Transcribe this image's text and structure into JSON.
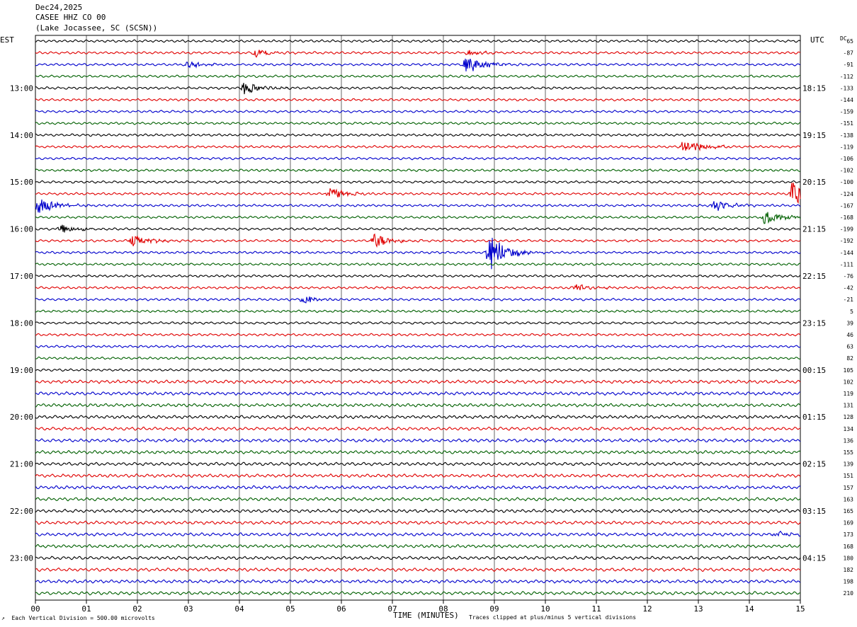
{
  "header": {
    "date": "Dec24,2025",
    "station": "CASEE HHZ CO 00",
    "location": "(Lake Jocassee, SC (SCSN))"
  },
  "axis": {
    "left_zone": "EST",
    "right_zone": "UTC",
    "dc_label": "DC",
    "xlabel": "TIME (MINUTES)"
  },
  "footer": {
    "scale_note": "Each Vertical Division =  500.00 microvolts",
    "clip_note": "Traces clipped at plus/minus 5 vertical divisions"
  },
  "chart_data": {
    "type": "line",
    "title": "Dec24,2025",
    "xlabel": "TIME (MINUTES)",
    "xlim": [
      0,
      15
    ],
    "x_ticks": [
      "00",
      "01",
      "02",
      "03",
      "04",
      "05",
      "06",
      "07",
      "08",
      "09",
      "10",
      "11",
      "12",
      "13",
      "14",
      "15"
    ],
    "trace_count": 48,
    "traces_per_hour": 4,
    "trace_colors": [
      "#000000",
      "#e00000",
      "#0000cc",
      "#006000"
    ],
    "left_hour_labels": [
      "13:00",
      "14:00",
      "15:00",
      "16:00",
      "17:00",
      "18:00",
      "19:00",
      "20:00",
      "21:00",
      "22:00",
      "23:00"
    ],
    "right_hour_labels": [
      "18:15",
      "19:15",
      "20:15",
      "21:15",
      "22:15",
      "23:15",
      "00:15",
      "01:15",
      "02:15",
      "03:15",
      "04:15"
    ],
    "dc_offsets": [
      "65",
      "-87",
      "-91",
      "-112",
      "-133",
      "-144",
      "-159",
      "-151",
      "-138",
      "-119",
      "-106",
      "-102",
      "-100",
      "-124",
      "-167",
      "-168",
      "-199",
      "-192",
      "-144",
      "-111",
      "-76",
      "-42",
      "-21",
      "5",
      "39",
      "46",
      "63",
      "82",
      "105",
      "102",
      "119",
      "131",
      "128",
      "134",
      "136",
      "155",
      "139",
      "151",
      "157",
      "163",
      "165",
      "169",
      "173",
      "168",
      "180",
      "182",
      "198",
      "210"
    ],
    "events": [
      {
        "trace": 1,
        "minute": 4.3,
        "amplitude": 0.6
      },
      {
        "trace": 2,
        "minute": 3.0,
        "amplitude": 0.5
      },
      {
        "trace": 2,
        "minute": 8.45,
        "amplitude": 1.5
      },
      {
        "trace": 1,
        "minute": 8.5,
        "amplitude": 0.4
      },
      {
        "trace": 4,
        "minute": 4.1,
        "amplitude": 1.0
      },
      {
        "trace": 9,
        "minute": 12.7,
        "amplitude": 1.4
      },
      {
        "trace": 13,
        "minute": 5.75,
        "amplitude": 1.0
      },
      {
        "trace": 13,
        "minute": 14.85,
        "amplitude": 2.3
      },
      {
        "trace": 14,
        "minute": 0.05,
        "amplitude": 1.3
      },
      {
        "trace": 14,
        "minute": 13.3,
        "amplitude": 0.9
      },
      {
        "trace": 15,
        "minute": 14.3,
        "amplitude": 1.1
      },
      {
        "trace": 16,
        "minute": 0.5,
        "amplitude": 0.8
      },
      {
        "trace": 17,
        "minute": 1.9,
        "amplitude": 0.9
      },
      {
        "trace": 17,
        "minute": 6.65,
        "amplitude": 1.2
      },
      {
        "trace": 18,
        "minute": 8.9,
        "amplitude": 3.0
      },
      {
        "trace": 21,
        "minute": 10.6,
        "amplitude": 0.6
      },
      {
        "trace": 22,
        "minute": 5.25,
        "amplitude": 0.7
      },
      {
        "trace": 42,
        "minute": 14.5,
        "amplitude": 0.4
      }
    ]
  }
}
